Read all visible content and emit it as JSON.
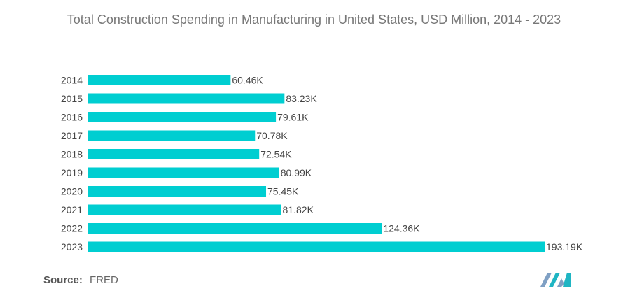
{
  "chart_data": {
    "type": "bar",
    "orientation": "horizontal",
    "title": "Total Construction Spending in Manufacturing in United States, USD Million, 2014 - 2023",
    "categories": [
      "2014",
      "2015",
      "2016",
      "2017",
      "2018",
      "2019",
      "2020",
      "2021",
      "2022",
      "2023"
    ],
    "values": [
      60.46,
      83.23,
      79.61,
      70.78,
      72.54,
      80.99,
      75.45,
      81.82,
      124.36,
      193.19
    ],
    "value_labels": [
      "60.46K",
      "83.23K",
      "79.61K",
      "70.78K",
      "72.54K",
      "80.99K",
      "75.45K",
      "81.82K",
      "124.36K",
      "193.19K"
    ],
    "value_unit": "K",
    "xlim": [
      0,
      193.19
    ],
    "grid": false,
    "legend": "none",
    "colors": {
      "bar": "#00CED1",
      "label": "#444444",
      "tick": "#444444"
    }
  },
  "footer": {
    "source_label": "Source:",
    "source_value": "FRED"
  },
  "logo": {
    "icon": "mordor-intelligence-logo-icon",
    "colors": [
      "#7FA0C4",
      "#1FB5C3"
    ]
  }
}
